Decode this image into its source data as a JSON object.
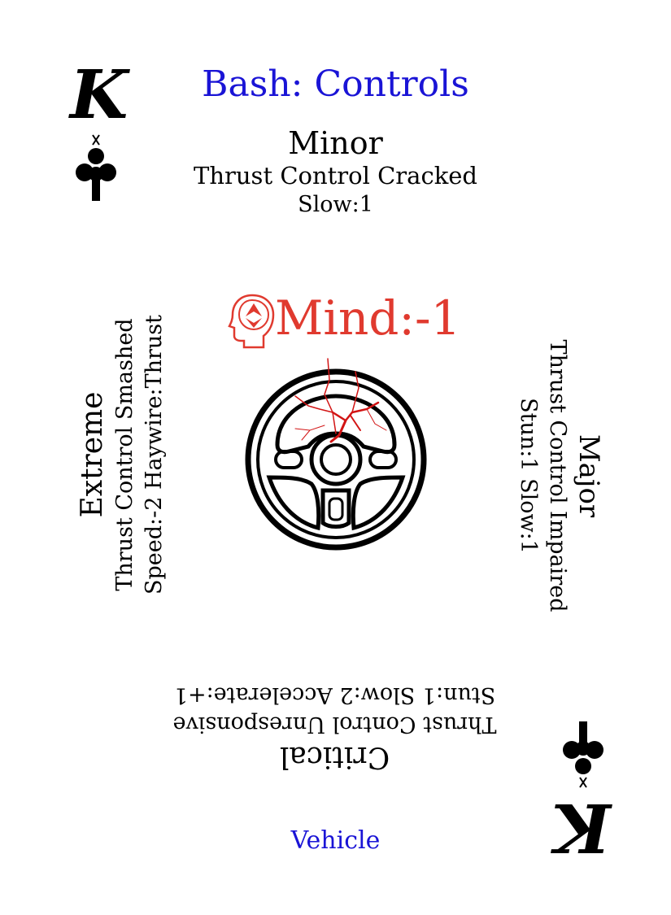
{
  "card": {
    "rank": "K",
    "suit": "clubs-icon",
    "title": "Bash: Controls",
    "footer": "Vehicle",
    "title_color": "#1a14d6",
    "mind_color": "#e03a2f"
  },
  "mind": {
    "label": "Mind:-1"
  },
  "minor": {
    "title": "Minor",
    "effect": "Thrust Control Cracked",
    "stat": "Slow:1"
  },
  "major": {
    "title": "Major",
    "effect": "Thrust Control Impaired",
    "stat": "Stun:1 Slow:1"
  },
  "extreme": {
    "title": "Extreme",
    "effect": "Thrust Control Smashed",
    "stat": "Speed:-2 Haywire:Thrust"
  },
  "critical": {
    "title": "Critical",
    "effect": "Thrust Control Unresponsive",
    "stat": "Stun:1 Slow:2 Accelerate:+1"
  },
  "art": {
    "icon": "cracked-steering-wheel-icon"
  }
}
